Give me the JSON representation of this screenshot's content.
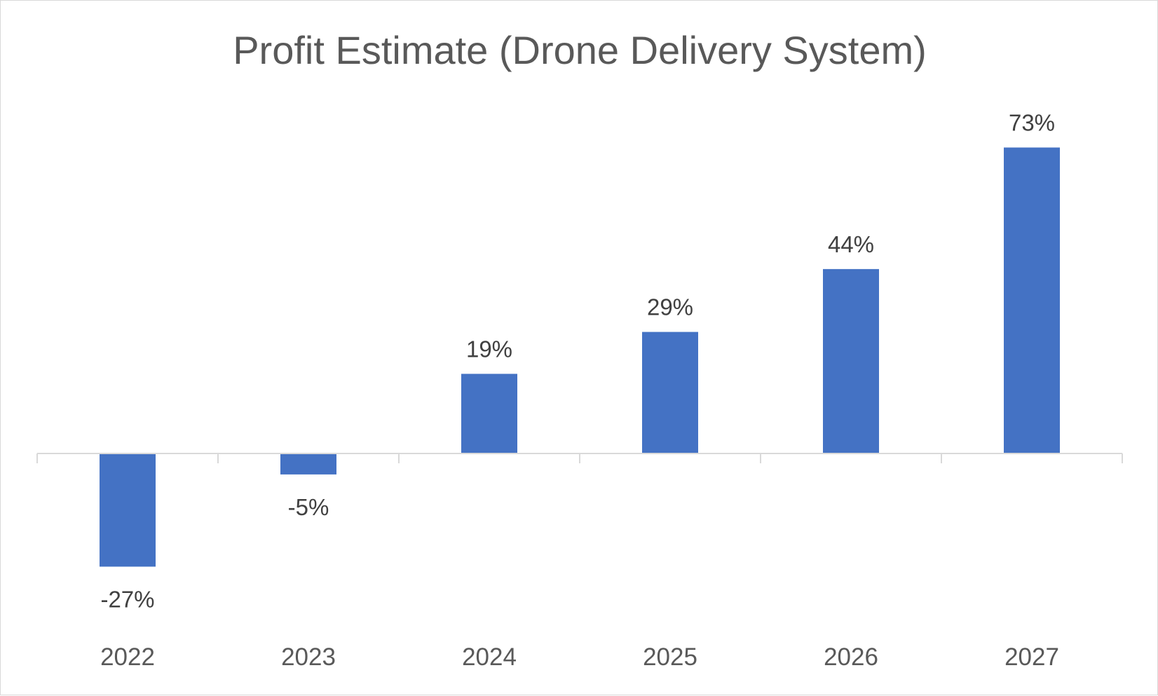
{
  "chart_data": {
    "type": "bar",
    "title": "Profit Estimate (Drone Delivery System)",
    "xlabel": "",
    "ylabel": "",
    "categories": [
      "2022",
      "2023",
      "2024",
      "2025",
      "2026",
      "2027"
    ],
    "values": [
      -27,
      -5,
      19,
      29,
      44,
      73
    ],
    "data_labels": [
      "-27%",
      "-5%",
      "19%",
      "29%",
      "44%",
      "73%"
    ],
    "unit": "%",
    "ylim": [
      -30,
      80
    ],
    "grid": false,
    "legend": "none",
    "colors": {
      "bar": "#4472C4",
      "axis": "#d9d9d9",
      "title": "#595959",
      "label": "#404040"
    }
  }
}
